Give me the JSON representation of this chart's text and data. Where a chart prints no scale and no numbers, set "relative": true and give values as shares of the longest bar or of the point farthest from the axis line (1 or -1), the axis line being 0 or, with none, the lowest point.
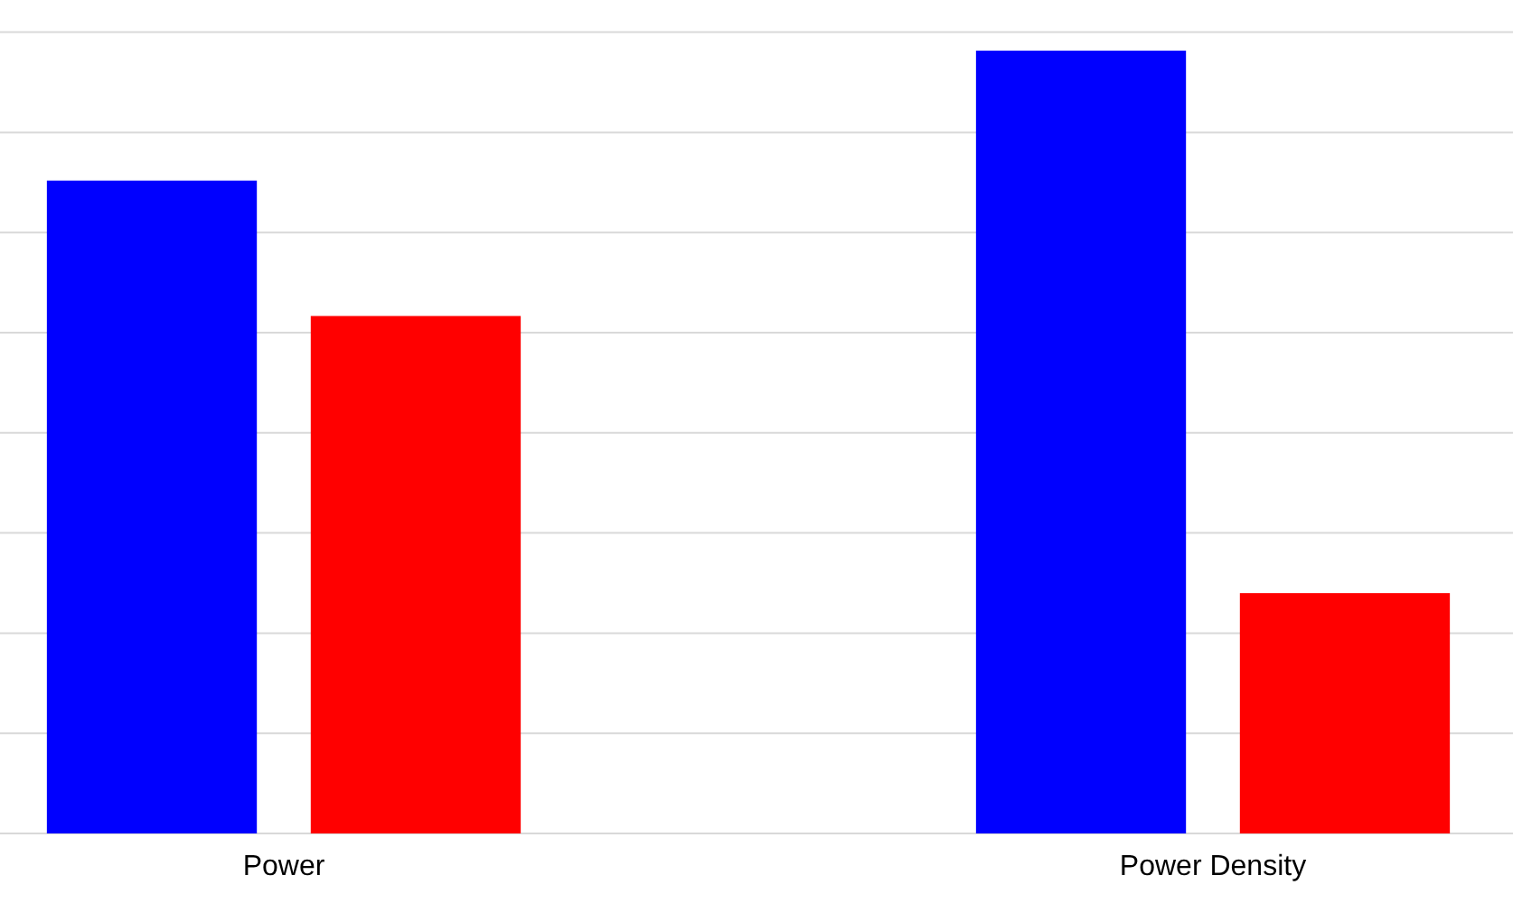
{
  "chart_data": {
    "type": "bar",
    "relative": true,
    "categories": [
      "Power",
      "Power Density"
    ],
    "grid": "y",
    "series": [
      {
        "color": "#0000ff",
        "values": [
          0.834,
          1
        ]
      },
      {
        "color": "#ff0000",
        "values": [
          0.661,
          0.307
        ]
      }
    ]
  }
}
